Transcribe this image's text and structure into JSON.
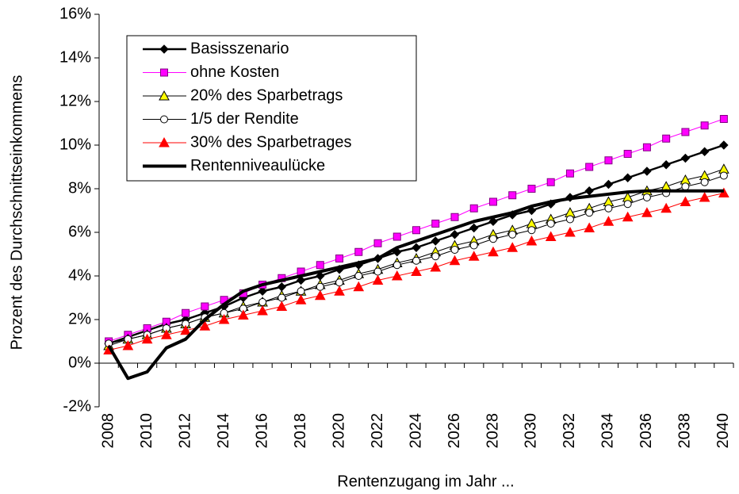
{
  "chart_data": {
    "type": "line",
    "x_label": "Rentenzugang im Jahr ...",
    "y_label": "Prozent des Durchschnittseinkommens",
    "categories": [
      "2008",
      null,
      "2010",
      null,
      "2012",
      null,
      "2014",
      null,
      "2016",
      null,
      "2018",
      null,
      "2020",
      null,
      "2022",
      null,
      "2024",
      null,
      "2026",
      null,
      "2028",
      null,
      "2030",
      null,
      "2032",
      null,
      "2034",
      null,
      "2036",
      null,
      "2038",
      null,
      "2040"
    ],
    "ylim": [
      -2,
      16
    ],
    "yticks": [
      {
        "value": -2,
        "label": "-2%"
      },
      {
        "value": 0,
        "label": "0%"
      },
      {
        "value": 2,
        "label": "2%"
      },
      {
        "value": 4,
        "label": "4%"
      },
      {
        "value": 6,
        "label": "6%"
      },
      {
        "value": 8,
        "label": "8%"
      },
      {
        "value": 10,
        "label": "10%"
      },
      {
        "value": 12,
        "label": "12%"
      },
      {
        "value": 14,
        "label": "14%"
      },
      {
        "value": 16,
        "label": "16%"
      }
    ],
    "legend": "upper left",
    "series": [
      {
        "name": "Basisszenario",
        "color": "#000000",
        "marker": "diamond",
        "marker_fill": "#000000",
        "line_width": 2.5,
        "values": [
          0.9,
          1.2,
          1.5,
          1.8,
          2.0,
          2.3,
          2.6,
          3.0,
          3.3,
          3.5,
          3.8,
          4.0,
          4.3,
          4.5,
          4.8,
          5.1,
          5.3,
          5.6,
          5.9,
          6.2,
          6.5,
          6.8,
          7.0,
          7.3,
          7.6,
          7.9,
          8.2,
          8.5,
          8.8,
          9.1,
          9.4,
          9.7,
          10.0
        ]
      },
      {
        "name": "ohne Kosten",
        "color": "#ff00ff",
        "marker": "square",
        "marker_fill": "#ff00ff",
        "line_width": 1,
        "values": [
          1.0,
          1.3,
          1.6,
          1.9,
          2.3,
          2.6,
          2.9,
          3.2,
          3.6,
          3.9,
          4.2,
          4.5,
          4.8,
          5.1,
          5.5,
          5.8,
          6.1,
          6.4,
          6.7,
          7.1,
          7.4,
          7.7,
          8.0,
          8.3,
          8.7,
          9.0,
          9.3,
          9.6,
          9.9,
          10.3,
          10.6,
          10.9,
          11.2
        ]
      },
      {
        "name": "20% des Sparbetrags",
        "color": "#000000",
        "marker": "triangle",
        "marker_fill": "#ffff00",
        "line_width": 1,
        "values": [
          0.8,
          1.1,
          1.3,
          1.6,
          1.8,
          2.1,
          2.3,
          2.6,
          2.8,
          3.1,
          3.3,
          3.6,
          3.8,
          4.1,
          4.3,
          4.6,
          4.8,
          5.1,
          5.4,
          5.6,
          5.9,
          6.1,
          6.4,
          6.6,
          6.9,
          7.1,
          7.4,
          7.6,
          7.9,
          8.1,
          8.4,
          8.6,
          8.9
        ]
      },
      {
        "name": "1/5 der Rendite",
        "color": "#000000",
        "marker": "circle",
        "marker_fill": "#ffffff",
        "line_width": 1,
        "values": [
          0.9,
          1.1,
          1.3,
          1.6,
          1.8,
          2.1,
          2.3,
          2.5,
          2.8,
          3.0,
          3.3,
          3.5,
          3.7,
          4.0,
          4.2,
          4.5,
          4.7,
          4.9,
          5.2,
          5.4,
          5.7,
          5.9,
          6.1,
          6.4,
          6.6,
          6.9,
          7.1,
          7.3,
          7.6,
          7.8,
          8.1,
          8.3,
          8.6
        ]
      },
      {
        "name": "30% des Sparbetrages",
        "color": "#ff0000",
        "marker": "triangle",
        "marker_fill": "#ff0000",
        "line_width": 1,
        "values": [
          0.6,
          0.8,
          1.1,
          1.3,
          1.5,
          1.7,
          2.0,
          2.2,
          2.4,
          2.6,
          2.9,
          3.1,
          3.3,
          3.5,
          3.8,
          4.0,
          4.2,
          4.4,
          4.7,
          4.9,
          5.1,
          5.3,
          5.6,
          5.8,
          6.0,
          6.2,
          6.5,
          6.7,
          6.9,
          7.1,
          7.4,
          7.6,
          7.8
        ]
      },
      {
        "name": "Rentenniveaulücke",
        "color": "#000000",
        "marker": "none",
        "marker_fill": "#000000",
        "line_width": 4,
        "values": [
          0.8,
          -0.7,
          -0.4,
          0.7,
          1.1,
          2.0,
          2.7,
          3.3,
          3.6,
          3.8,
          4.0,
          4.2,
          4.4,
          4.6,
          4.8,
          5.3,
          5.6,
          5.9,
          6.2,
          6.5,
          6.7,
          6.9,
          7.2,
          7.4,
          7.55,
          7.65,
          7.75,
          7.85,
          7.9,
          7.9,
          7.9,
          7.9,
          7.9
        ]
      }
    ]
  }
}
